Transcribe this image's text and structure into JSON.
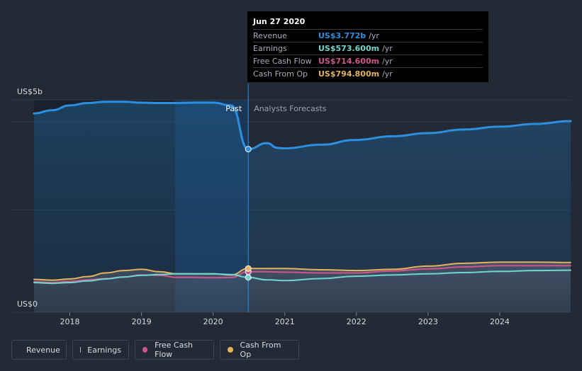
{
  "tooltip": {
    "date": "Jun 27 2020",
    "rows": [
      {
        "label": "Revenue",
        "value": "US$3.772b",
        "unit": "/yr",
        "color": "#2d8fe0"
      },
      {
        "label": "Earnings",
        "value": "US$573.600m",
        "unit": "/yr",
        "color": "#6ed7cf"
      },
      {
        "label": "Free Cash Flow",
        "value": "US$714.600m",
        "unit": "/yr",
        "color": "#d1548c"
      },
      {
        "label": "Cash From Op",
        "value": "US$794.800m",
        "unit": "/yr",
        "color": "#e5b35a"
      }
    ]
  },
  "legend": [
    {
      "label": "Revenue",
      "color": "#2d8fe0"
    },
    {
      "label": "Earnings",
      "color": "#6ed7cf"
    },
    {
      "label": "Free Cash Flow",
      "color": "#d1548c"
    },
    {
      "label": "Cash From Op",
      "color": "#e5b35a"
    }
  ],
  "chart_data": {
    "type": "area",
    "y_top_label": "US$5b",
    "y_bottom_label": "US$0",
    "past_label": "Past",
    "forecast_label": "Analysts Forecasts",
    "ylim": [
      -0.3,
      5.0
    ],
    "xlim": [
      2017.5,
      2024.99
    ],
    "x_ticks": [
      2018,
      2019,
      2020,
      2021,
      2022,
      2023,
      2024
    ],
    "x_tick_labels": [
      "2018",
      "2019",
      "2020",
      "2021",
      "2022",
      "2023",
      "2024"
    ],
    "divider_x": 2020.49,
    "highlight_range": [
      2019.47,
      2020.49
    ],
    "series": [
      {
        "name": "Revenue",
        "color": "#2d8fe0",
        "points": [
          [
            2017.5,
            4.66
          ],
          [
            2017.75,
            4.74
          ],
          [
            2018.0,
            4.86
          ],
          [
            2018.25,
            4.92
          ],
          [
            2018.5,
            4.95
          ],
          [
            2018.75,
            4.95
          ],
          [
            2019.0,
            4.93
          ],
          [
            2019.25,
            4.92
          ],
          [
            2019.5,
            4.92
          ],
          [
            2019.75,
            4.93
          ],
          [
            2020.0,
            4.93
          ],
          [
            2020.25,
            4.86
          ],
          [
            2020.49,
            3.77
          ],
          [
            2020.75,
            3.92
          ],
          [
            2020.9,
            3.8
          ],
          [
            2021.0,
            3.79
          ],
          [
            2021.5,
            3.88
          ],
          [
            2022.0,
            4.0
          ],
          [
            2022.5,
            4.09
          ],
          [
            2023.0,
            4.17
          ],
          [
            2023.5,
            4.26
          ],
          [
            2024.0,
            4.33
          ],
          [
            2024.5,
            4.4
          ],
          [
            2024.99,
            4.47
          ]
        ]
      },
      {
        "name": "Earnings",
        "color": "#6ed7cf",
        "points": [
          [
            2017.5,
            0.44
          ],
          [
            2017.75,
            0.42
          ],
          [
            2018.0,
            0.44
          ],
          [
            2018.25,
            0.48
          ],
          [
            2018.5,
            0.53
          ],
          [
            2018.75,
            0.58
          ],
          [
            2019.0,
            0.62
          ],
          [
            2019.25,
            0.64
          ],
          [
            2019.5,
            0.66
          ],
          [
            2019.75,
            0.66
          ],
          [
            2020.0,
            0.66
          ],
          [
            2020.25,
            0.64
          ],
          [
            2020.49,
            0.57
          ],
          [
            2020.75,
            0.51
          ],
          [
            2021.0,
            0.49
          ],
          [
            2021.5,
            0.54
          ],
          [
            2022.0,
            0.6
          ],
          [
            2022.5,
            0.63
          ],
          [
            2023.0,
            0.66
          ],
          [
            2023.5,
            0.69
          ],
          [
            2024.0,
            0.72
          ],
          [
            2024.5,
            0.74
          ],
          [
            2024.99,
            0.75
          ]
        ]
      },
      {
        "name": "Free Cash Flow",
        "color": "#d1548c",
        "points": [
          [
            2017.5,
            0.46
          ],
          [
            2017.75,
            0.44
          ],
          [
            2018.0,
            0.47
          ],
          [
            2018.25,
            0.51
          ],
          [
            2018.5,
            0.54
          ],
          [
            2018.75,
            0.58
          ],
          [
            2019.0,
            0.63
          ],
          [
            2019.25,
            0.62
          ],
          [
            2019.5,
            0.57
          ],
          [
            2019.75,
            0.57
          ],
          [
            2020.0,
            0.56
          ],
          [
            2020.25,
            0.57
          ],
          [
            2020.49,
            0.71
          ],
          [
            2020.75,
            0.71
          ],
          [
            2021.0,
            0.7
          ],
          [
            2021.5,
            0.68
          ],
          [
            2022.0,
            0.68
          ],
          [
            2022.5,
            0.73
          ],
          [
            2023.0,
            0.78
          ],
          [
            2023.5,
            0.83
          ],
          [
            2024.0,
            0.86
          ],
          [
            2024.5,
            0.86
          ],
          [
            2024.99,
            0.86
          ]
        ]
      },
      {
        "name": "Cash From Op",
        "color": "#e5b35a",
        "points": [
          [
            2017.5,
            0.52
          ],
          [
            2017.75,
            0.5
          ],
          [
            2018.0,
            0.53
          ],
          [
            2018.25,
            0.59
          ],
          [
            2018.5,
            0.68
          ],
          [
            2018.75,
            0.74
          ],
          [
            2019.0,
            0.77
          ],
          [
            2019.25,
            0.71
          ],
          [
            2019.5,
            0.66
          ],
          [
            2019.75,
            0.66
          ],
          [
            2020.0,
            0.66
          ],
          [
            2020.25,
            0.63
          ],
          [
            2020.49,
            0.79
          ],
          [
            2020.75,
            0.79
          ],
          [
            2021.0,
            0.79
          ],
          [
            2021.5,
            0.76
          ],
          [
            2022.0,
            0.74
          ],
          [
            2022.5,
            0.77
          ],
          [
            2023.0,
            0.85
          ],
          [
            2023.5,
            0.92
          ],
          [
            2024.0,
            0.95
          ],
          [
            2024.5,
            0.95
          ],
          [
            2024.99,
            0.94
          ]
        ]
      }
    ]
  }
}
